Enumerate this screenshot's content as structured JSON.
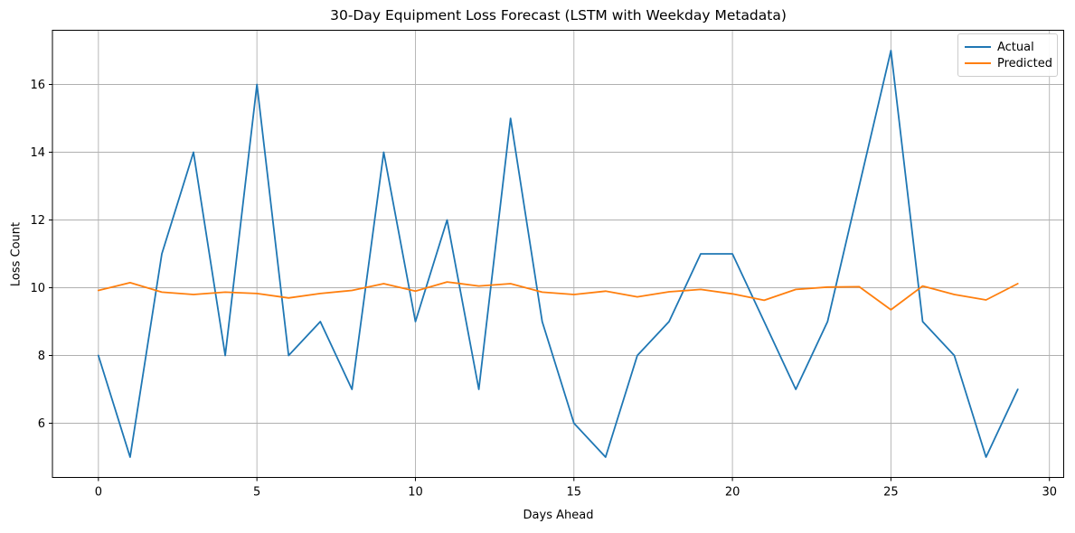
{
  "chart_data": {
    "type": "line",
    "title": "30-Day Equipment Loss Forecast (LSTM with Weekday Metadata)",
    "xlabel": "Days Ahead",
    "ylabel": "Loss Count",
    "x": [
      0,
      1,
      2,
      3,
      4,
      5,
      6,
      7,
      8,
      9,
      10,
      11,
      12,
      13,
      14,
      15,
      16,
      17,
      18,
      19,
      20,
      21,
      22,
      23,
      24,
      25,
      26,
      27,
      28,
      29
    ],
    "series": [
      {
        "name": "Actual",
        "color": "#1f77b4",
        "values": [
          8,
          5,
          11,
          14,
          8,
          16,
          8,
          9,
          7,
          14,
          9,
          12,
          7,
          15,
          9,
          6,
          5,
          8,
          9,
          11,
          11,
          9,
          7,
          9,
          13,
          17,
          9,
          8,
          5,
          7
        ]
      },
      {
        "name": "Predicted",
        "color": "#ff7f0e",
        "values": [
          9.92,
          10.15,
          9.87,
          9.8,
          9.87,
          9.83,
          9.7,
          9.83,
          9.92,
          10.12,
          9.9,
          10.17,
          10.05,
          10.12,
          9.87,
          9.8,
          9.9,
          9.73,
          9.88,
          9.95,
          9.82,
          9.63,
          9.95,
          10.02,
          10.03,
          9.35,
          10.05,
          9.8,
          9.64,
          10.12
        ]
      }
    ],
    "xticks": [
      0,
      5,
      10,
      15,
      20,
      25,
      30
    ],
    "yticks": [
      6,
      8,
      10,
      12,
      14,
      16
    ],
    "xlim": [
      -1.45,
      30.45
    ],
    "ylim": [
      4.4,
      17.6
    ],
    "grid": true,
    "grid_color": "#b0b0b0",
    "legend_position": "upper right"
  }
}
